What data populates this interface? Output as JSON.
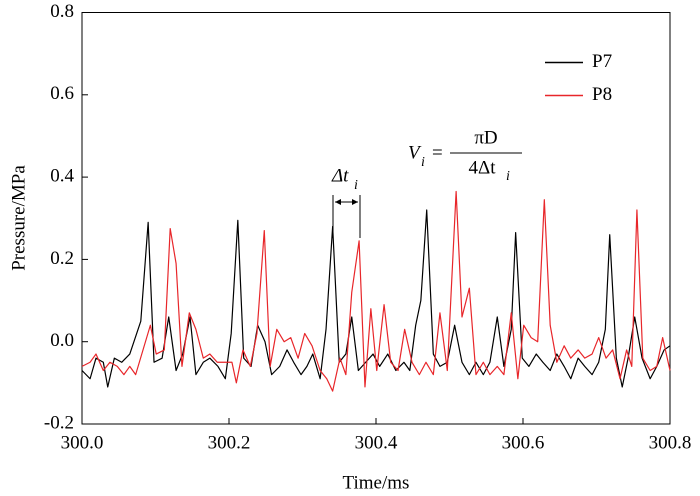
{
  "chart_data": {
    "type": "line",
    "xlabel": "Time/ms",
    "ylabel": "Pressure/MPa",
    "xlim": [
      300.0,
      300.8
    ],
    "ylim": [
      -0.2,
      0.8
    ],
    "xticks": [
      {
        "value": 300.0,
        "label": "300.0"
      },
      300.2,
      300.4,
      300.6,
      {
        "value": 300.8,
        "label": "300.8"
      }
    ],
    "yticks": [
      -0.2,
      {
        "value": 0,
        "label": "0.0"
      },
      0.2,
      0.4,
      0.6,
      0.8
    ],
    "legend": "upper right",
    "annotations": [
      {
        "text": "Δt",
        "sub": "i"
      },
      {
        "lhs": "V",
        "lhs_sub": "i",
        "eq": "=",
        "numerator": "πD",
        "denominator": "4Δt",
        "denominator_sub": "i"
      }
    ],
    "series": [
      {
        "name": "P7",
        "color": "#000000",
        "x": [
          300.0,
          300.011,
          300.019,
          300.029,
          300.035,
          300.044,
          300.054,
          300.065,
          300.08,
          300.09,
          300.098,
          300.109,
          300.118,
          300.128,
          300.137,
          300.147,
          300.155,
          300.165,
          300.174,
          300.185,
          300.195,
          300.203,
          300.212,
          300.22,
          300.23,
          300.239,
          300.249,
          300.258,
          300.269,
          300.279,
          300.288,
          300.298,
          300.306,
          300.314,
          300.324,
          300.332,
          300.341,
          300.35,
          300.359,
          300.367,
          300.376,
          300.386,
          300.396,
          300.405,
          300.416,
          300.427,
          300.438,
          300.446,
          300.454,
          300.461,
          300.469,
          300.478,
          300.487,
          300.497,
          300.507,
          300.517,
          300.527,
          300.536,
          300.546,
          300.555,
          300.565,
          300.574,
          300.584,
          300.59,
          300.599,
          300.608,
          300.618,
          300.627,
          300.637,
          300.646,
          300.656,
          300.665,
          300.675,
          300.684,
          300.694,
          300.703,
          300.712,
          300.718,
          300.727,
          300.735,
          300.743,
          300.752,
          300.762,
          300.773,
          300.782,
          300.792,
          300.8
        ],
        "values": [
          -0.07,
          -0.09,
          -0.04,
          -0.05,
          -0.11,
          -0.04,
          -0.05,
          -0.03,
          0.05,
          0.29,
          -0.05,
          -0.04,
          0.06,
          -0.07,
          -0.03,
          0.06,
          -0.08,
          -0.05,
          -0.04,
          -0.06,
          -0.09,
          0.02,
          0.295,
          -0.04,
          -0.06,
          0.04,
          0.0,
          -0.08,
          -0.06,
          -0.02,
          -0.05,
          -0.08,
          -0.06,
          -0.03,
          -0.09,
          0.03,
          0.28,
          -0.05,
          -0.03,
          0.06,
          -0.07,
          -0.05,
          -0.03,
          -0.06,
          -0.03,
          -0.07,
          -0.05,
          -0.07,
          0.04,
          0.1,
          0.32,
          -0.03,
          -0.06,
          -0.05,
          0.04,
          -0.05,
          -0.08,
          -0.05,
          -0.08,
          -0.05,
          0.06,
          -0.06,
          0.03,
          0.265,
          -0.04,
          -0.06,
          -0.03,
          -0.05,
          -0.07,
          -0.03,
          -0.06,
          -0.09,
          -0.04,
          -0.06,
          -0.08,
          -0.05,
          0.03,
          0.26,
          -0.04,
          -0.11,
          -0.04,
          0.06,
          -0.04,
          -0.09,
          -0.06,
          -0.02,
          -0.01
        ]
      },
      {
        "name": "P8",
        "color": "#e8262a",
        "x": [
          300.0,
          300.011,
          300.019,
          300.029,
          300.038,
          300.048,
          300.057,
          300.065,
          300.073,
          300.093,
          300.101,
          300.112,
          300.12,
          300.128,
          300.136,
          300.146,
          300.155,
          300.165,
          300.174,
          300.184,
          300.195,
          300.204,
          300.21,
          300.219,
          300.229,
          300.238,
          300.248,
          300.256,
          300.265,
          300.275,
          300.284,
          300.294,
          300.303,
          300.313,
          300.324,
          300.333,
          300.341,
          300.351,
          300.359,
          300.367,
          300.377,
          300.385,
          300.393,
          300.401,
          300.411,
          300.42,
          300.43,
          300.439,
          300.449,
          300.459,
          300.468,
          300.478,
          300.487,
          300.497,
          300.509,
          300.517,
          300.527,
          300.536,
          300.546,
          300.555,
          300.565,
          300.574,
          300.584,
          300.593,
          300.601,
          300.611,
          300.62,
          300.629,
          300.637,
          300.646,
          300.656,
          300.665,
          300.675,
          300.684,
          300.694,
          300.703,
          300.713,
          300.722,
          300.732,
          300.741,
          300.748,
          300.755,
          300.763,
          300.773,
          300.782,
          300.79,
          300.8
        ],
        "values": [
          -0.06,
          -0.05,
          -0.03,
          -0.07,
          -0.05,
          -0.06,
          -0.08,
          -0.06,
          -0.08,
          0.04,
          -0.03,
          -0.02,
          0.275,
          0.19,
          -0.06,
          0.07,
          0.03,
          -0.04,
          -0.03,
          -0.05,
          -0.05,
          -0.05,
          -0.1,
          -0.02,
          -0.06,
          0.02,
          0.27,
          -0.06,
          0.03,
          0.0,
          0.01,
          -0.04,
          0.02,
          -0.01,
          -0.07,
          -0.09,
          -0.12,
          -0.04,
          -0.08,
          0.12,
          0.245,
          -0.11,
          0.08,
          -0.07,
          0.09,
          -0.05,
          -0.07,
          0.03,
          -0.05,
          -0.08,
          -0.05,
          -0.08,
          0.07,
          -0.07,
          0.365,
          0.06,
          0.13,
          -0.08,
          -0.05,
          -0.08,
          -0.06,
          -0.08,
          0.07,
          -0.09,
          0.04,
          0.01,
          0.0,
          0.345,
          0.04,
          -0.05,
          -0.01,
          -0.04,
          -0.02,
          -0.04,
          -0.03,
          0.01,
          -0.04,
          -0.02,
          -0.09,
          -0.02,
          -0.06,
          0.32,
          -0.04,
          -0.07,
          -0.06,
          0.01,
          -0.07
        ]
      }
    ]
  }
}
